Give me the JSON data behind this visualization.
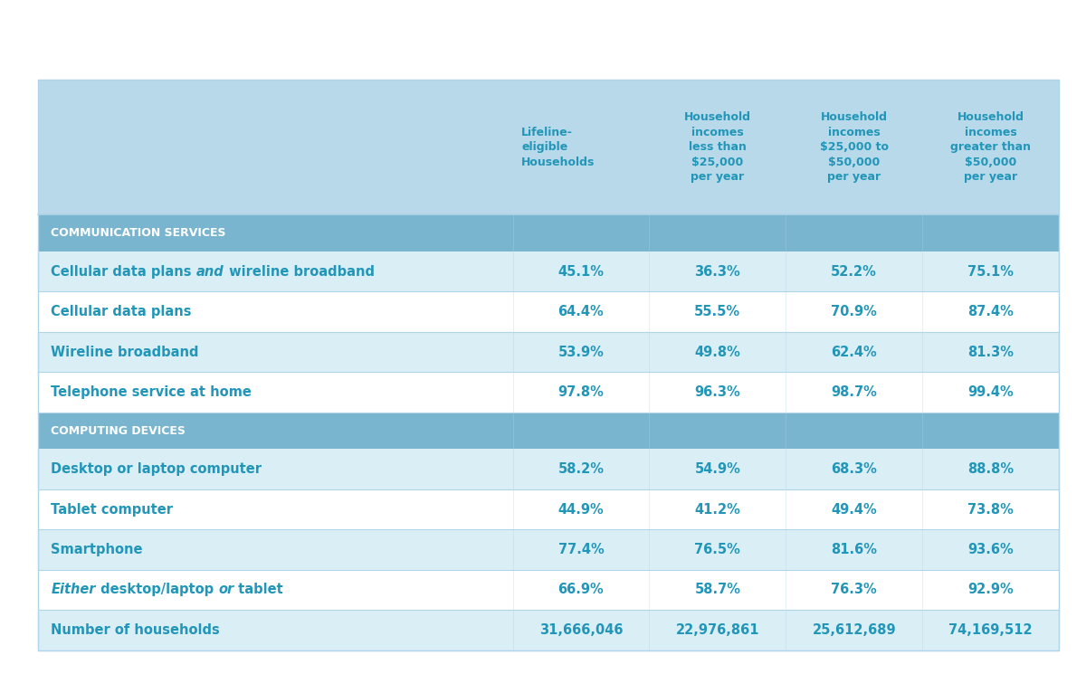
{
  "col_headers": [
    "Lifeline-\neligible\nHouseholds",
    "Household\nincomes\nless than\n$25,000\nper year",
    "Household\nincomes\n$25,000 to\n$50,000\nper year",
    "Household\nincomes\ngreater than\n$50,000\nper year"
  ],
  "rows": [
    {
      "type": "section",
      "label": "COMMUNICATION SERVICES",
      "values": null
    },
    {
      "type": "data",
      "label_parts": [
        [
          "Cellular data plans ",
          false
        ],
        [
          "and",
          true
        ],
        [
          " wireline broadband",
          false
        ]
      ],
      "values": [
        "45.1%",
        "36.3%",
        "52.2%",
        "75.1%"
      ]
    },
    {
      "type": "data",
      "label_parts": [
        [
          "Cellular data plans",
          false
        ]
      ],
      "values": [
        "64.4%",
        "55.5%",
        "70.9%",
        "87.4%"
      ]
    },
    {
      "type": "data",
      "label_parts": [
        [
          "Wireline broadband",
          false
        ]
      ],
      "values": [
        "53.9%",
        "49.8%",
        "62.4%",
        "81.3%"
      ]
    },
    {
      "type": "data",
      "label_parts": [
        [
          "Telephone service at home",
          false
        ]
      ],
      "values": [
        "97.8%",
        "96.3%",
        "98.7%",
        "99.4%"
      ]
    },
    {
      "type": "section",
      "label": "COMPUTING DEVICES",
      "values": null
    },
    {
      "type": "data",
      "label_parts": [
        [
          "Desktop or laptop computer",
          false
        ]
      ],
      "values": [
        "58.2%",
        "54.9%",
        "68.3%",
        "88.8%"
      ]
    },
    {
      "type": "data",
      "label_parts": [
        [
          "Tablet computer",
          false
        ]
      ],
      "values": [
        "44.9%",
        "41.2%",
        "49.4%",
        "73.8%"
      ]
    },
    {
      "type": "data",
      "label_parts": [
        [
          "Smartphone",
          false
        ]
      ],
      "values": [
        "77.4%",
        "76.5%",
        "81.6%",
        "93.6%"
      ]
    },
    {
      "type": "data",
      "label_parts": [
        [
          "Either",
          true
        ],
        [
          " desktop/laptop ",
          false
        ],
        [
          "or",
          true
        ],
        [
          " tablet",
          false
        ]
      ],
      "values": [
        "66.9%",
        "58.7%",
        "76.3%",
        "92.9%"
      ]
    },
    {
      "type": "data",
      "label_parts": [
        [
          "Number of households",
          false
        ]
      ],
      "values": [
        "31,666,046",
        "22,976,861",
        "25,612,689",
        "74,169,512"
      ]
    }
  ],
  "colors": {
    "header_bg": "#b8d9ea",
    "section_bg": "#7ab5cf",
    "section_text": "#ffffff",
    "data_text": "#2196b8",
    "label_text": "#2196b8",
    "row_bg_white": "#ffffff",
    "row_bg_light": "#daeef6",
    "border": "#b0d4e8"
  },
  "row_alt_pattern": [
    true,
    false,
    true,
    false,
    true,
    false,
    true,
    false,
    false
  ]
}
